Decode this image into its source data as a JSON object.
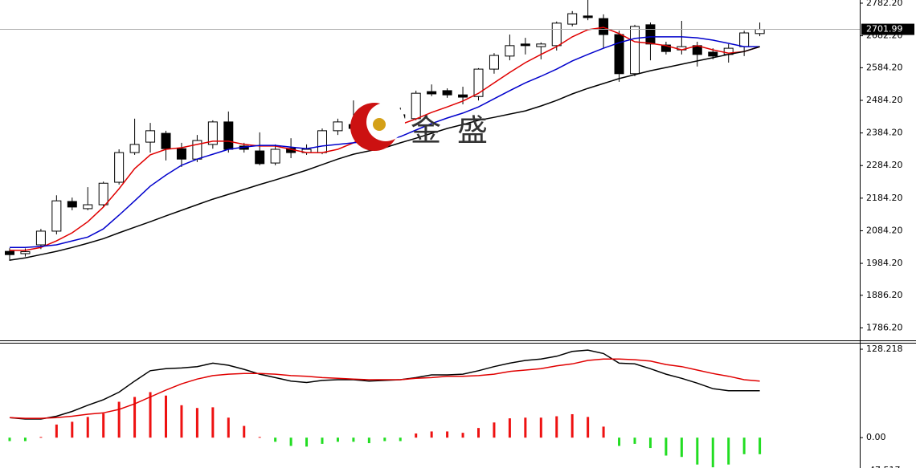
{
  "chart_data": [
    {
      "type": "candlestick",
      "open": [
        2021,
        2014,
        2041,
        2083,
        2174,
        2152,
        2164,
        2233,
        2324,
        2356,
        2383,
        2336,
        2304,
        2349,
        2418,
        2344,
        2329,
        2292,
        2337,
        2324,
        2324,
        2391,
        2410,
        2393,
        2410,
        2440,
        2428,
        2511,
        2514,
        2501,
        2496,
        2580,
        2620,
        2657,
        2649,
        2652,
        2718,
        2743,
        2735,
        2686,
        2566,
        2716,
        2654,
        2639,
        2652,
        2632,
        2625,
        2649,
        2689
      ],
      "high": [
        2031,
        2030,
        2090,
        2193,
        2186,
        2218,
        2235,
        2334,
        2428,
        2415,
        2391,
        2354,
        2378,
        2423,
        2450,
        2354,
        2386,
        2349,
        2368,
        2349,
        2398,
        2428,
        2484,
        2450,
        2460,
        2462,
        2514,
        2533,
        2521,
        2526,
        2583,
        2629,
        2686,
        2676,
        2662,
        2726,
        2758,
        2792,
        2748,
        2698,
        2716,
        2723,
        2664,
        2728,
        2664,
        2644,
        2657,
        2698,
        2723
      ],
      "low": [
        1992,
        2005,
        2028,
        2073,
        2147,
        2147,
        2157,
        2226,
        2317,
        2324,
        2300,
        2280,
        2295,
        2336,
        2324,
        2324,
        2285,
        2285,
        2307,
        2317,
        2319,
        2378,
        2393,
        2386,
        2400,
        2423,
        2423,
        2497,
        2492,
        2472,
        2484,
        2566,
        2607,
        2625,
        2610,
        2637,
        2711,
        2730,
        2644,
        2541,
        2558,
        2607,
        2625,
        2625,
        2588,
        2610,
        2600,
        2620,
        2681
      ],
      "close": [
        2011,
        2020,
        2083,
        2176,
        2157,
        2164,
        2230,
        2324,
        2349,
        2391,
        2336,
        2304,
        2361,
        2418,
        2334,
        2334,
        2290,
        2334,
        2324,
        2334,
        2391,
        2418,
        2398,
        2418,
        2442,
        2430,
        2506,
        2504,
        2501,
        2494,
        2580,
        2622,
        2652,
        2652,
        2657,
        2721,
        2750,
        2738,
        2686,
        2566,
        2711,
        2657,
        2634,
        2649,
        2625,
        2620,
        2644,
        2691,
        2701.99
      ],
      "up_color": "#ffffff",
      "down_color": "#000000",
      "series": [
        {
          "color": "#e00000",
          "values": [
            2024,
            2024,
            2033,
            2053,
            2078,
            2112,
            2157,
            2213,
            2275,
            2317,
            2334,
            2339,
            2349,
            2359,
            2359,
            2349,
            2344,
            2344,
            2334,
            2324,
            2324,
            2334,
            2354,
            2378,
            2398,
            2410,
            2427,
            2447,
            2464,
            2482,
            2506,
            2538,
            2570,
            2600,
            2625,
            2649,
            2679,
            2701,
            2708,
            2689,
            2664,
            2659,
            2652,
            2639,
            2652,
            2639,
            2629,
            2634,
            2649
          ]
        },
        {
          "color": "#0000cc",
          "values": [
            2033,
            2033,
            2036,
            2041,
            2053,
            2065,
            2090,
            2132,
            2176,
            2221,
            2255,
            2285,
            2304,
            2319,
            2334,
            2341,
            2346,
            2346,
            2341,
            2336,
            2344,
            2349,
            2354,
            2359,
            2361,
            2373,
            2393,
            2413,
            2430,
            2445,
            2464,
            2489,
            2514,
            2538,
            2558,
            2580,
            2605,
            2625,
            2644,
            2661,
            2674,
            2679,
            2679,
            2679,
            2676,
            2669,
            2659,
            2649,
            2649
          ]
        },
        {
          "color": "#000000",
          "values": [
            1994,
            2001,
            2011,
            2021,
            2033,
            2046,
            2060,
            2078,
            2095,
            2112,
            2130,
            2147,
            2164,
            2181,
            2196,
            2211,
            2226,
            2240,
            2255,
            2270,
            2287,
            2304,
            2319,
            2329,
            2339,
            2354,
            2368,
            2383,
            2398,
            2410,
            2423,
            2432,
            2442,
            2452,
            2467,
            2484,
            2504,
            2521,
            2536,
            2551,
            2563,
            2575,
            2585,
            2595,
            2605,
            2615,
            2625,
            2634,
            2649
          ]
        }
      ],
      "ylim": [
        1748,
        2792
      ],
      "yticks": [
        {
          "value": 2782.2,
          "label": "2782.20"
        },
        {
          "value": 2682.2,
          "label": "2682.20"
        },
        {
          "value": 2584.2,
          "label": "2584.20"
        },
        {
          "value": 2484.2,
          "label": "2484.20"
        },
        {
          "value": 2384.2,
          "label": "2384.20"
        },
        {
          "value": 2284.2,
          "label": "2284.20"
        },
        {
          "value": 2184.2,
          "label": "2184.20"
        },
        {
          "value": 2084.2,
          "label": "2084.20"
        },
        {
          "value": 1984.2,
          "label": "1984.20"
        },
        {
          "value": 1886.2,
          "label": "1886.20"
        },
        {
          "value": 1786.2,
          "label": "1786.20"
        }
      ],
      "current_price": 2701.99
    },
    {
      "type": "macd",
      "values": [
        -5,
        -5,
        1,
        19,
        23,
        30,
        35,
        52,
        59,
        66,
        61,
        47,
        43,
        44,
        29,
        17,
        1,
        -6,
        -12,
        -13,
        -9,
        -6,
        -6,
        -8,
        -5,
        -5,
        6,
        9,
        9,
        7,
        14,
        22,
        28,
        29,
        29,
        31,
        34,
        30,
        16,
        -12,
        -9,
        -15,
        -26,
        -28,
        -39,
        -43,
        -39,
        -24,
        -24
      ],
      "positive_color": "#ee1111",
      "negative_color": "#22dd22",
      "series": [
        {
          "color": "#000000",
          "values": [
            29,
            27,
            27,
            31,
            38,
            47,
            55,
            66,
            82,
            97,
            100,
            101,
            103,
            108,
            105,
            99,
            92,
            87,
            82,
            80,
            83,
            84,
            84,
            82,
            83,
            84,
            87,
            91,
            91,
            92,
            97,
            103,
            108,
            112,
            114,
            118,
            125,
            127,
            122,
            108,
            107,
            100,
            92,
            86,
            79,
            71,
            68,
            68,
            68
          ]
        },
        {
          "color": "#e00000",
          "values": [
            29,
            28,
            28,
            29,
            31,
            34,
            36,
            41,
            49,
            59,
            69,
            78,
            85,
            90,
            92,
            93,
            93,
            92,
            90,
            89,
            87,
            86,
            85,
            84,
            84,
            84,
            86,
            87,
            89,
            89,
            90,
            92,
            96,
            98,
            100,
            104,
            107,
            112,
            114,
            114,
            113,
            111,
            106,
            103,
            98,
            93,
            89,
            84,
            82
          ]
        }
      ],
      "ylim": [
        -47.517,
        136.4
      ],
      "yticks": [
        128.218,
        {
          "value": 0,
          "label": "0.00"
        },
        -47.517
      ]
    }
  ],
  "watermark": [
    "金",
    "盛"
  ]
}
